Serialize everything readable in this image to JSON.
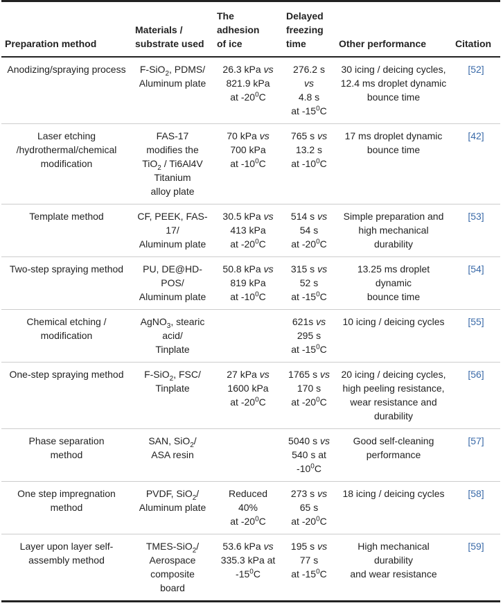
{
  "table": {
    "header": [
      [
        "Preparation method"
      ],
      [
        "Materials /",
        "substrate used"
      ],
      [
        "The",
        "adhesion",
        "of ice"
      ],
      [
        "Delayed",
        "freezing",
        "time"
      ],
      [
        "Other performance"
      ],
      [
        "Citation"
      ]
    ],
    "rows": [
      [
        [
          "Anodizing/spraying process"
        ],
        [
          [
            "F-SiO",
            {
              "text": "2",
              "style": "sub"
            },
            ", PDMS/"
          ],
          "Aluminum plate"
        ],
        [
          [
            "26.3 kPa ",
            {
              "text": "vs",
              "style": "italic"
            }
          ],
          "821.9 kPa",
          [
            "at -20",
            {
              "text": "0",
              "style": "sup"
            },
            "C"
          ]
        ],
        [
          "276.2 s",
          [
            {
              "text": "vs",
              "style": "italic"
            }
          ],
          "4.8 s",
          [
            "at -15",
            {
              "text": "0",
              "style": "sup"
            },
            "C"
          ]
        ],
        [
          "30 icing / deicing cycles,",
          "12.4 ms droplet dynamic",
          "bounce time"
        ],
        [
          "[52]"
        ]
      ],
      [
        [
          "Laser etching",
          "/hydrothermal/chemical",
          "modification"
        ],
        [
          "FAS-17",
          "modifies the",
          [
            "TiO",
            {
              "text": "2",
              "style": "sub"
            },
            " / Ti6Al4V"
          ],
          "Titanium",
          "alloy plate"
        ],
        [
          [
            "70 kPa ",
            {
              "text": "vs",
              "style": "italic"
            }
          ],
          "700 kPa",
          [
            "at -10",
            {
              "text": "0",
              "style": "sup"
            },
            "C"
          ]
        ],
        [
          [
            "765 s ",
            {
              "text": "vs",
              "style": "italic"
            }
          ],
          "13.2 s",
          [
            "at -10",
            {
              "text": "0",
              "style": "sup"
            },
            "C"
          ]
        ],
        [
          "17 ms droplet dynamic",
          "bounce time"
        ],
        [
          "[42]"
        ]
      ],
      [
        [
          "Template method"
        ],
        [
          "CF, PEEK, FAS-",
          "17/",
          "Aluminum plate"
        ],
        [
          [
            "30.5 kPa ",
            {
              "text": "vs",
              "style": "italic"
            }
          ],
          "413 kPa",
          [
            "at -20",
            {
              "text": "0",
              "style": "sup"
            },
            "C"
          ]
        ],
        [
          [
            "514 s ",
            {
              "text": "vs",
              "style": "italic"
            }
          ],
          "54 s",
          [
            "at -20",
            {
              "text": "0",
              "style": "sup"
            },
            "C"
          ]
        ],
        [
          "Simple preparation and",
          "high mechanical",
          "durability"
        ],
        [
          "[53]"
        ]
      ],
      [
        [
          "Two-step spraying method"
        ],
        [
          "PU, DE@HD-",
          "POS/",
          "Aluminum plate"
        ],
        [
          [
            "50.8 kPa ",
            {
              "text": "vs",
              "style": "italic"
            }
          ],
          "819 kPa",
          [
            "at -10",
            {
              "text": "0",
              "style": "sup"
            },
            "C"
          ]
        ],
        [
          [
            "315 s ",
            {
              "text": "vs",
              "style": "italic"
            }
          ],
          "52 s",
          [
            "at -15",
            {
              "text": "0",
              "style": "sup"
            },
            "C"
          ]
        ],
        [
          "13.25 ms droplet",
          "dynamic",
          "bounce time"
        ],
        [
          "[54]"
        ]
      ],
      [
        [
          "Chemical etching /",
          "modification"
        ],
        [
          [
            "AgNO",
            {
              "text": "3",
              "style": "sub"
            },
            ", stearic"
          ],
          "acid/",
          "Tinplate"
        ],
        [],
        [
          [
            "621s ",
            {
              "text": "vs",
              "style": "italic"
            }
          ],
          "295 s",
          [
            "at -15",
            {
              "text": "0",
              "style": "sup"
            },
            "C"
          ]
        ],
        [
          "10 icing / deicing cycles"
        ],
        [
          "[55]"
        ]
      ],
      [
        [
          "One-step spraying method"
        ],
        [
          [
            "F-SiO",
            {
              "text": "2",
              "style": "sub"
            },
            ", FSC/"
          ],
          "Tinplate"
        ],
        [
          [
            "27 kPa ",
            {
              "text": "vs",
              "style": "italic"
            }
          ],
          "1600 kPa",
          [
            "at -20",
            {
              "text": "0",
              "style": "sup"
            },
            "C"
          ]
        ],
        [
          [
            "1765 s ",
            {
              "text": "vs",
              "style": "italic"
            }
          ],
          "170 s",
          [
            "at -20",
            {
              "text": "0",
              "style": "sup"
            },
            "C"
          ]
        ],
        [
          "20 icing / deicing cycles,",
          "high peeling resistance,",
          "wear resistance and",
          "durability"
        ],
        [
          "[56]"
        ]
      ],
      [
        [
          "Phase separation",
          "method"
        ],
        [
          [
            "SAN, SiO",
            {
              "text": "2",
              "style": "sub"
            },
            "/"
          ],
          "ASA resin"
        ],
        [],
        [
          [
            "5040 s ",
            {
              "text": "vs",
              "style": "italic"
            }
          ],
          "540 s at",
          [
            "-10",
            {
              "text": "0",
              "style": "sup"
            },
            "C"
          ]
        ],
        [
          "Good self-cleaning",
          "performance"
        ],
        [
          "[57]"
        ]
      ],
      [
        [
          "One step impregnation",
          "method"
        ],
        [
          [
            "PVDF, SiO",
            {
              "text": "2",
              "style": "sub"
            },
            "/"
          ],
          "Aluminum plate"
        ],
        [
          "Reduced",
          "40%",
          [
            "at -20",
            {
              "text": "0",
              "style": "sup"
            },
            "C"
          ]
        ],
        [
          [
            "273 s ",
            {
              "text": "vs",
              "style": "italic"
            }
          ],
          "65 s",
          [
            "at -20",
            {
              "text": "0",
              "style": "sup"
            },
            "C"
          ]
        ],
        [
          "18 icing / deicing cycles"
        ],
        [
          "[58]"
        ]
      ],
      [
        [
          "Layer upon layer self-",
          "assembly method"
        ],
        [
          [
            "TMES-SiO",
            {
              "text": "2",
              "style": "sub"
            },
            "/"
          ],
          "Aerospace",
          "composite",
          "board"
        ],
        [
          [
            "53.6 kPa ",
            {
              "text": "vs",
              "style": "italic"
            }
          ],
          "335.3 kPa at",
          [
            "-15",
            {
              "text": "0",
              "style": "sup"
            },
            "C"
          ]
        ],
        [
          [
            "195 s ",
            {
              "text": "vs",
              "style": "italic"
            }
          ],
          "77 s",
          [
            "at -15",
            {
              "text": "0",
              "style": "sup"
            },
            "C"
          ]
        ],
        [
          "High mechanical",
          "durability",
          "and wear resistance"
        ],
        [
          "[59]"
        ]
      ]
    ]
  }
}
